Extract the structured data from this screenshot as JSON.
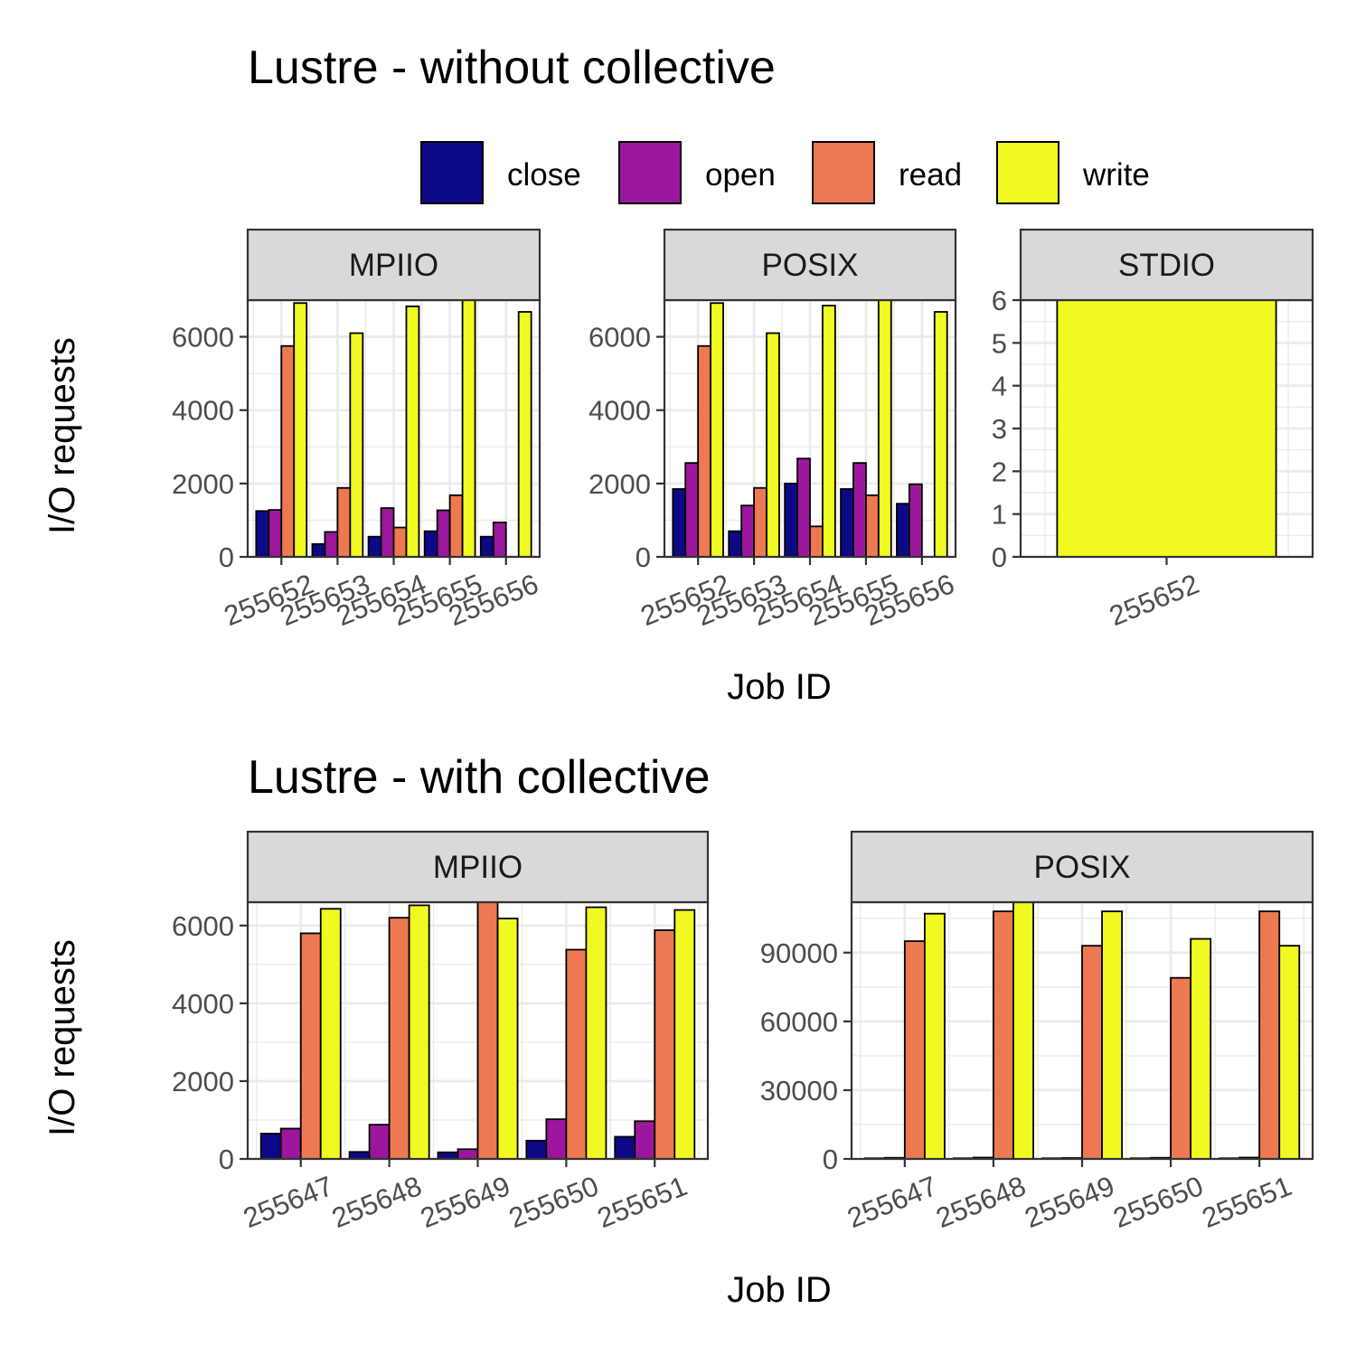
{
  "chart_data": [
    {
      "type": "bar",
      "title": "Lustre - without collective",
      "xlabel": "Job ID",
      "ylabel": "I/O requests",
      "legend": {
        "position": "top",
        "entries": [
          {
            "name": "close",
            "color": "#0d0887"
          },
          {
            "name": "open",
            "color": "#9c179e"
          },
          {
            "name": "read",
            "color": "#ed7953"
          },
          {
            "name": "write",
            "color": "#f0f921"
          }
        ]
      },
      "grid": true,
      "panels": [
        {
          "name": "MPIIO",
          "categories": [
            "255652",
            "255653",
            "255654",
            "255655",
            "255656"
          ],
          "ylim": [
            0,
            7000
          ],
          "yticks": [
            0,
            2000,
            4000,
            6000
          ],
          "series": [
            {
              "name": "close",
              "values": [
                1250,
                350,
                550,
                700,
                550
              ]
            },
            {
              "name": "open",
              "values": [
                1280,
                680,
                1330,
                1270,
                940
              ]
            },
            {
              "name": "read",
              "values": [
                5750,
                1880,
                800,
                1680,
                null
              ]
            },
            {
              "name": "write",
              "values": [
                6920,
                6100,
                6830,
                7000,
                6680
              ]
            }
          ]
        },
        {
          "name": "POSIX",
          "categories": [
            "255652",
            "255653",
            "255654",
            "255655",
            "255656"
          ],
          "ylim": [
            0,
            7000
          ],
          "yticks": [
            0,
            2000,
            4000,
            6000
          ],
          "series": [
            {
              "name": "close",
              "values": [
                1850,
                700,
                2000,
                1850,
                1450
              ]
            },
            {
              "name": "open",
              "values": [
                2560,
                1400,
                2680,
                2560,
                1980
              ]
            },
            {
              "name": "read",
              "values": [
                5750,
                1880,
                830,
                1680,
                null
              ]
            },
            {
              "name": "write",
              "values": [
                6920,
                6100,
                6850,
                7000,
                6680
              ]
            }
          ]
        },
        {
          "name": "STDIO",
          "categories": [
            "255652"
          ],
          "ylim": [
            0,
            6
          ],
          "yticks": [
            0,
            1,
            2,
            3,
            4,
            5,
            6
          ],
          "series": [
            {
              "name": "close",
              "values": [
                null
              ]
            },
            {
              "name": "open",
              "values": [
                null
              ]
            },
            {
              "name": "read",
              "values": [
                null
              ]
            },
            {
              "name": "write",
              "values": [
                6
              ]
            }
          ]
        }
      ]
    },
    {
      "type": "bar",
      "title": "Lustre - with collective",
      "xlabel": "Job ID",
      "ylabel": "I/O requests",
      "grid": true,
      "panels": [
        {
          "name": "MPIIO",
          "categories": [
            "255647",
            "255648",
            "255649",
            "255650",
            "255651"
          ],
          "ylim": [
            0,
            6600
          ],
          "yticks": [
            0,
            2000,
            4000,
            6000
          ],
          "series": [
            {
              "name": "close",
              "values": [
                650,
                180,
                170,
                470,
                570
              ]
            },
            {
              "name": "open",
              "values": [
                780,
                880,
                250,
                1020,
                970
              ]
            },
            {
              "name": "read",
              "values": [
                5800,
                6200,
                6600,
                5380,
                5880
              ]
            },
            {
              "name": "write",
              "values": [
                6430,
                6520,
                6180,
                6470,
                6400
              ]
            }
          ]
        },
        {
          "name": "POSIX",
          "categories": [
            "255647",
            "255648",
            "255649",
            "255650",
            "255651"
          ],
          "ylim": [
            0,
            112000
          ],
          "yticks": [
            0,
            30000,
            60000,
            90000
          ],
          "series": [
            {
              "name": "close",
              "values": [
                300,
                300,
                300,
                300,
                300
              ]
            },
            {
              "name": "open",
              "values": [
                500,
                600,
                400,
                500,
                600
              ]
            },
            {
              "name": "read",
              "values": [
                95000,
                108000,
                93000,
                79000,
                108000
              ]
            },
            {
              "name": "write",
              "values": [
                107000,
                112000,
                108000,
                96000,
                93000
              ]
            }
          ]
        }
      ]
    }
  ]
}
